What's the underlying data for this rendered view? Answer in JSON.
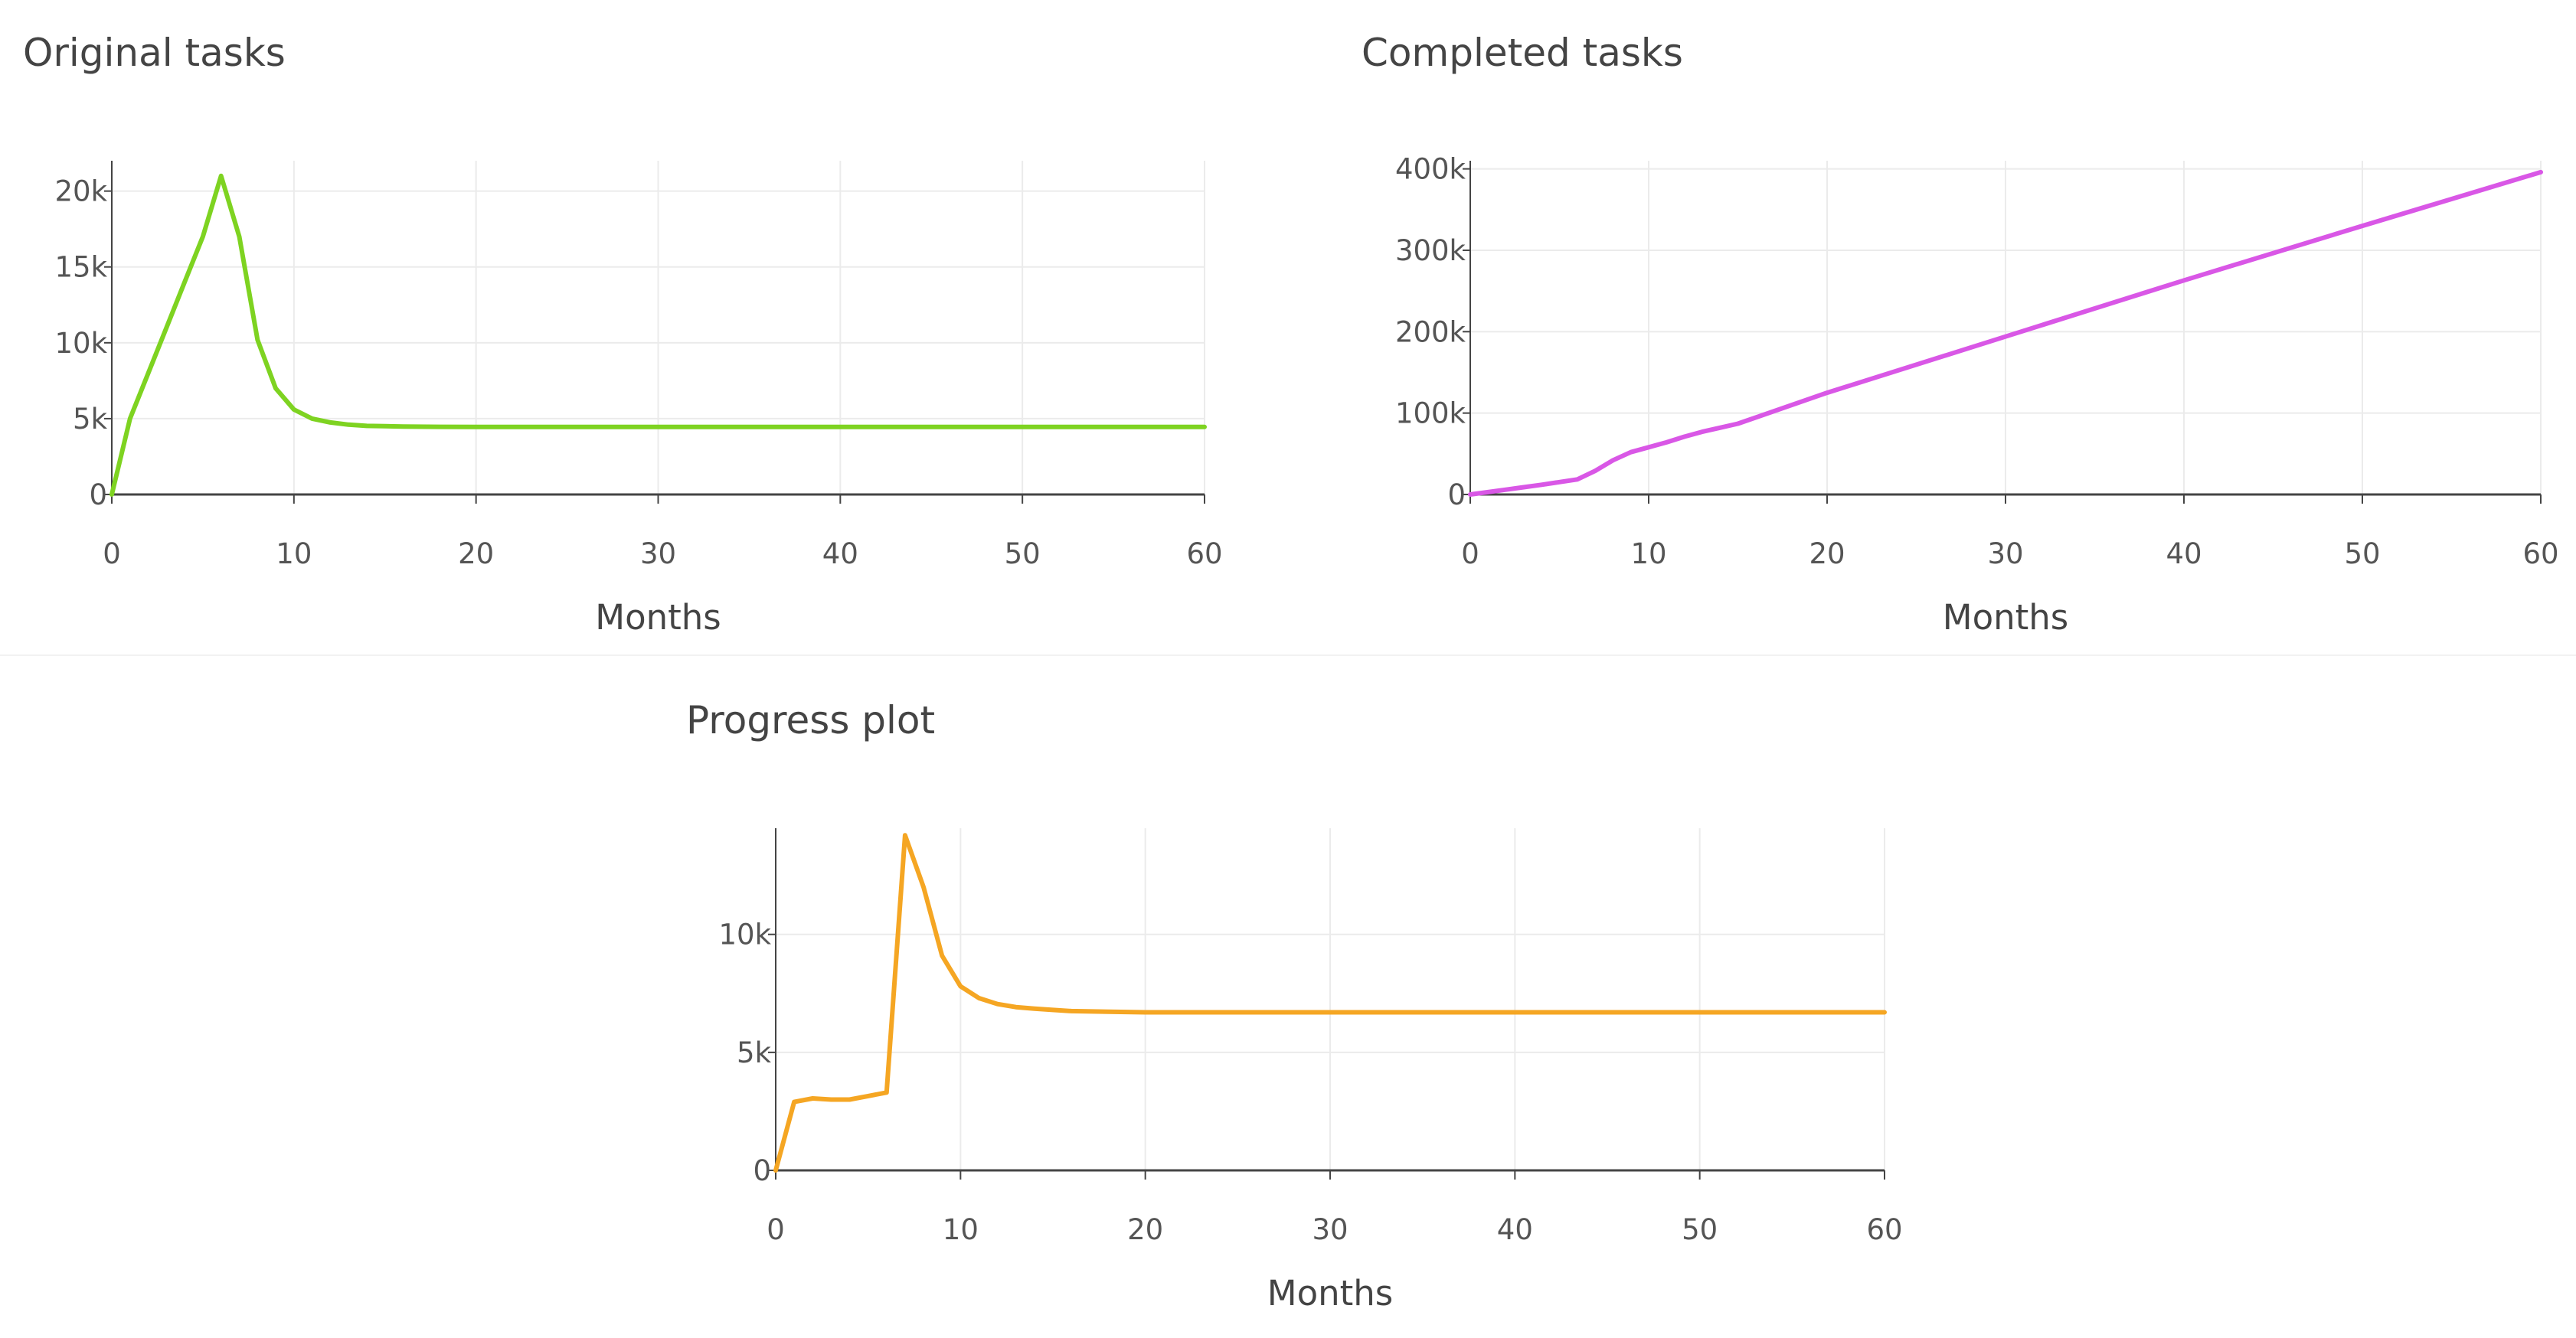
{
  "chart_data": [
    {
      "type": "line",
      "title": "Original tasks",
      "xlabel": "Months",
      "ylabel": "",
      "xlim": [
        0,
        60
      ],
      "ylim": [
        0,
        22000
      ],
      "x_ticks": [
        0,
        10,
        20,
        30,
        40,
        50,
        60
      ],
      "y_ticks": [
        0,
        5000,
        10000,
        15000,
        20000
      ],
      "y_tick_labels": [
        "0",
        "5k",
        "10k",
        "15k",
        "20k"
      ],
      "grid": true,
      "color": "#7ed321",
      "x": [
        0,
        1,
        2,
        3,
        4,
        5,
        6,
        7,
        8,
        9,
        10,
        11,
        12,
        13,
        14,
        15,
        16,
        18,
        20,
        25,
        30,
        40,
        50,
        60
      ],
      "y": [
        0,
        5000,
        8000,
        11000,
        14000,
        17000,
        21000,
        17000,
        10200,
        7000,
        5600,
        5000,
        4750,
        4600,
        4520,
        4500,
        4480,
        4460,
        4450,
        4450,
        4450,
        4450,
        4450,
        4450
      ]
    },
    {
      "type": "line",
      "title": "Completed tasks",
      "xlabel": "Months",
      "ylabel": "",
      "xlim": [
        0,
        60
      ],
      "ylim": [
        0,
        410000
      ],
      "x_ticks": [
        0,
        10,
        20,
        30,
        40,
        50,
        60
      ],
      "y_ticks": [
        0,
        100000,
        200000,
        300000,
        400000
      ],
      "y_tick_labels": [
        "0",
        "100k",
        "200k",
        "300k",
        "400k"
      ],
      "grid": true,
      "color": "#d957e6",
      "x": [
        0,
        1,
        2,
        3,
        4,
        5,
        6,
        7,
        8,
        9,
        10,
        11,
        12,
        13,
        14,
        15,
        20,
        30,
        40,
        50,
        60
      ],
      "y": [
        0,
        2900,
        5900,
        8900,
        11900,
        15200,
        18500,
        29000,
        42000,
        52000,
        58000,
        64000,
        71000,
        77000,
        82000,
        87000,
        125000,
        194000,
        263000,
        330000,
        396000
      ]
    },
    {
      "type": "line",
      "title": "Progress plot",
      "xlabel": "Months",
      "ylabel": "",
      "xlim": [
        0,
        60
      ],
      "ylim": [
        0,
        14500
      ],
      "x_ticks": [
        0,
        10,
        20,
        30,
        40,
        50,
        60
      ],
      "y_ticks": [
        0,
        5000,
        10000
      ],
      "y_tick_labels": [
        "0",
        "5k",
        "10k"
      ],
      "grid": true,
      "color": "#f5a623",
      "x": [
        0,
        1,
        2,
        3,
        4,
        5,
        6,
        7,
        8,
        9,
        10,
        11,
        12,
        13,
        14,
        15,
        16,
        18,
        20,
        25,
        30,
        40,
        50,
        60
      ],
      "y": [
        0,
        2900,
        3050,
        3000,
        3000,
        3150,
        3300,
        14200,
        12000,
        9100,
        7800,
        7300,
        7050,
        6920,
        6850,
        6800,
        6750,
        6720,
        6700,
        6700,
        6700,
        6700,
        6700,
        6700
      ]
    }
  ]
}
